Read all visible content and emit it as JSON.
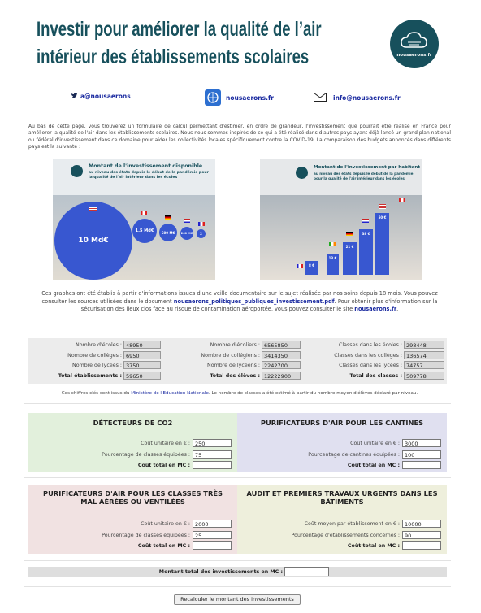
{
  "header": {
    "title_lines": [
      "Investir pour améliorer la qualité de l’air",
      "intérieur des établissements scolaires"
    ],
    "logo_text": "nousaerons.fr"
  },
  "contacts": {
    "twitter": "a@nousaerons",
    "site": "nousaerons.fr",
    "email": "info@nousaerons.fr"
  },
  "intro": "Au bas de cette page, vous trouverez un formulaire de calcul permettant d'estimer, en ordre de grandeur, l'investissement que pourrait être réalisé en France pour améliorer la qualité de l'air dans les établissements scolaires. Nous nous sommes inspirés de ce qui a été réalisé dans d'autres pays ayant déjà lancé un grand plan national ou fédéral d'investissement dans ce domaine pour aider les collectivités locales spécifiquement contre la COVID-19. La comparaison des budgets annoncés dans différents pays est la suivante :",
  "infographics": [
    {
      "title": "Montant de l'investissement disponible",
      "subtitle": "au niveau des états depuis le début de la pandémie pour la qualité de l'air intérieur dans les écoles",
      "labels": [
        "10 Md€",
        "1.5 Md€",
        "600 M€",
        "260 M€",
        "2"
      ]
    },
    {
      "title": "Montant de l'investissement par habitant",
      "subtitle": "au niveau des états depuis le début de la pandémie pour la qualité de l'air intérieur dans les écoles",
      "labels": [
        "8 €",
        "13 €",
        "21 €",
        "38 €",
        "50 €"
      ]
    }
  ],
  "sources": {
    "parts": [
      "Ces graphes ont été établis à partir d'informations issues d'une veille documentaire sur le sujet réalisée par nos soins depuis 18 mois. Vous pouvez consulter les sources utilisées dans le document ",
      "nousaerons_politiques_publiques_investissement.pdf",
      ". Pour obtenir plus d'information sur la sécurisation des lieux clos face au risque de contamination aéroportée, vous pouvez consulter le site ",
      "nousaerons.fr",
      "."
    ]
  },
  "stats": {
    "columns": [
      {
        "rows": [
          {
            "label": "Nombre d'écoles :",
            "value": 48950
          },
          {
            "label": "Nombre de collèges :",
            "value": 6950
          },
          {
            "label": "Nombre de lycées :",
            "value": 3750
          }
        ],
        "total": {
          "label": "Total établissements :",
          "value": 59650
        }
      },
      {
        "rows": [
          {
            "label": "Nombre d'écoliers :",
            "value": 6565850
          },
          {
            "label": "Nombre de collégiens :",
            "value": 3414350
          },
          {
            "label": "Nombre de lycéens :",
            "value": 2242700
          }
        ],
        "total": {
          "label": "Total des élèves :",
          "value": 12222900
        }
      },
      {
        "rows": [
          {
            "label": "Classes dans les écoles :",
            "value": 298448
          },
          {
            "label": "Classes dans les collèges :",
            "value": 136574
          },
          {
            "label": "Classes dans les lycées :",
            "value": 74757
          }
        ],
        "total": {
          "label": "Total des classes :",
          "value": 509778
        }
      }
    ]
  },
  "source_note": {
    "parts": [
      "Ces chiffres clés sont issus du ",
      "Ministère de l'Education Nationale",
      ". Le nombre de classes a été estimé à partir du nombre moyen d'élèves déclaré par niveau."
    ]
  },
  "sections": [
    {
      "title": "DÉTECTEURS DE CO2",
      "fields": [
        {
          "label": "Coût unitaire en € :",
          "value": 250
        },
        {
          "label": "Pourcentage de classes équipées :",
          "value": 75
        }
      ],
      "total_label": "Coût total en MC :"
    },
    {
      "title": "PURIFICATEURS D'AIR POUR LES CANTINES",
      "fields": [
        {
          "label": "Coût unitaire en € :",
          "value": 3000
        },
        {
          "label": "Pourcentage de cantines équipées :",
          "value": 100
        }
      ],
      "total_label": "Coût total en MC :"
    },
    {
      "title": "PURIFICATEURS D'AIR POUR LES CLASSES TRÈS MAL AÉRÉES OU VENTILÉES",
      "fields": [
        {
          "label": "Coût unitaire en € :",
          "value": 2000
        },
        {
          "label": "Pourcentage de classes équipées :",
          "value": 25
        }
      ],
      "total_label": "Coût total en MC :"
    },
    {
      "title": "AUDIT ET PREMIERS TRAVAUX URGENTS DANS LES BÂTIMENTS",
      "fields": [
        {
          "label": "Coût moyen par établissement en € :",
          "value": 10000
        },
        {
          "label": "Pourcentage d'établissements concernés :",
          "value": 90
        }
      ],
      "total_label": "Coût total en MC :"
    }
  ],
  "grand_total": {
    "label": "Montant total des investissements en MC :"
  },
  "button": "Recalculer le montant des investissements"
}
